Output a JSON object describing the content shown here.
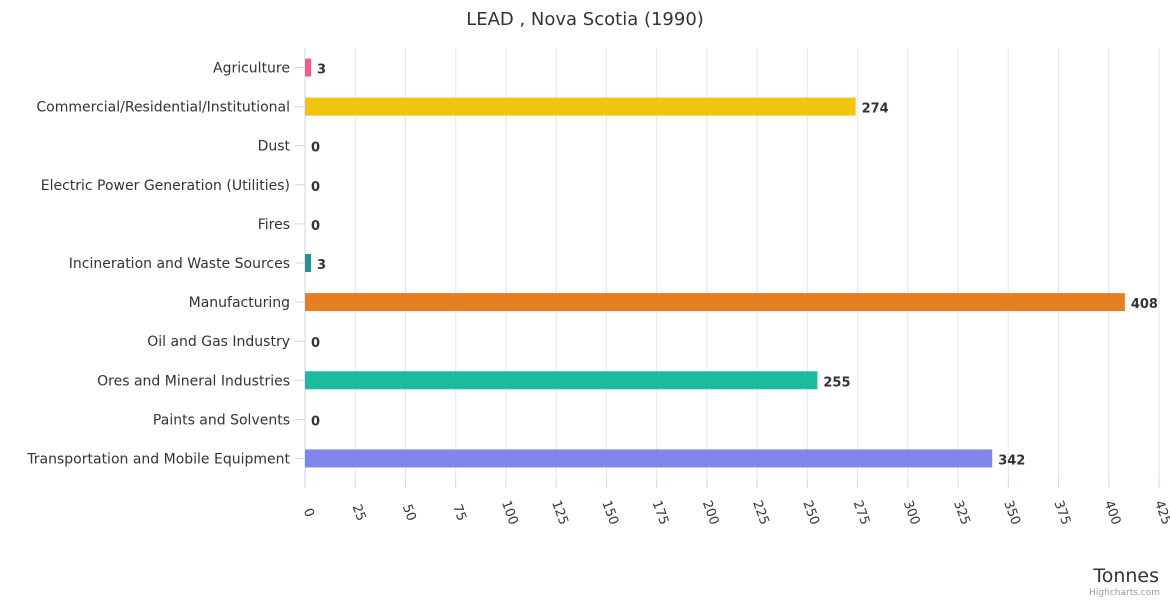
{
  "chart_data": {
    "type": "bar",
    "orientation": "horizontal",
    "title": "LEAD , Nova Scotia (1990)",
    "xlabel": "Tonnes",
    "ylabel": "",
    "categories": [
      "Agriculture",
      "Commercial/Residential/Institutional",
      "Dust",
      "Electric Power Generation (Utilities)",
      "Fires",
      "Incineration and Waste Sources",
      "Manufacturing",
      "Oil and Gas Industry",
      "Ores and Mineral Industries",
      "Paints and Solvents",
      "Transportation and Mobile Equipment"
    ],
    "values": [
      3,
      274,
      0,
      0,
      0,
      3,
      408,
      0,
      255,
      0,
      342
    ],
    "colors": [
      "#f15c80",
      "#f1c40f",
      "#434348",
      "#90ed7d",
      "#f7a35c",
      "#2b908f",
      "#e67e22",
      "#8085e9",
      "#1abc9c",
      "#e4d354",
      "#8085e9"
    ],
    "xlim": [
      0,
      425
    ],
    "ticks": [
      "0",
      "25",
      "50",
      "75",
      "100",
      "125",
      "150",
      "175",
      "200",
      "225",
      "250",
      "275",
      "300",
      "325",
      "350",
      "375",
      "400",
      "425"
    ],
    "grid": true,
    "legend": "none",
    "credits": "Highcharts.com"
  }
}
